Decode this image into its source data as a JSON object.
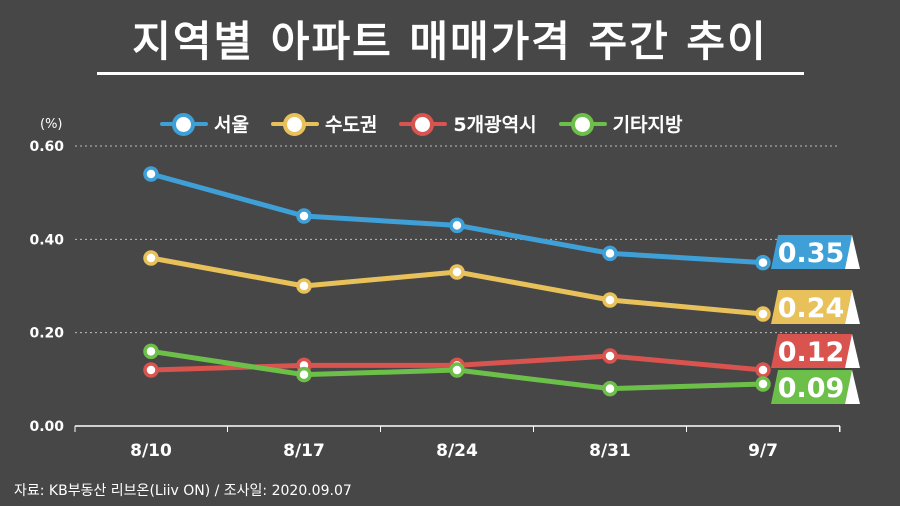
{
  "title": "지역별 아파트 매매가격 주간 추이",
  "unit": "(%)",
  "source": "자료: KB부동산 리브온(Liiv ON)  / 조사일: 2020.09.07",
  "chart_data": {
    "type": "line",
    "categories": [
      "8/10",
      "8/17",
      "8/24",
      "8/31",
      "9/7"
    ],
    "ylim": [
      0,
      0.6
    ],
    "yticks": [
      "0.00",
      "0.20",
      "0.40",
      "0.60"
    ],
    "grid": true,
    "legend_position": "top",
    "series": [
      {
        "name": "서울",
        "color": "#3fa0d8",
        "values": [
          0.54,
          0.45,
          0.43,
          0.37,
          0.35
        ],
        "end_label": "0.35"
      },
      {
        "name": "수도권",
        "color": "#e8c15a",
        "values": [
          0.36,
          0.3,
          0.33,
          0.27,
          0.24
        ],
        "end_label": "0.24"
      },
      {
        "name": "5개광역시",
        "color": "#d9534f",
        "values": [
          0.12,
          0.13,
          0.13,
          0.15,
          0.12
        ],
        "end_label": "0.12"
      },
      {
        "name": "기타지방",
        "color": "#6cc04a",
        "values": [
          0.16,
          0.11,
          0.12,
          0.08,
          0.09
        ],
        "end_label": "0.09"
      }
    ]
  }
}
